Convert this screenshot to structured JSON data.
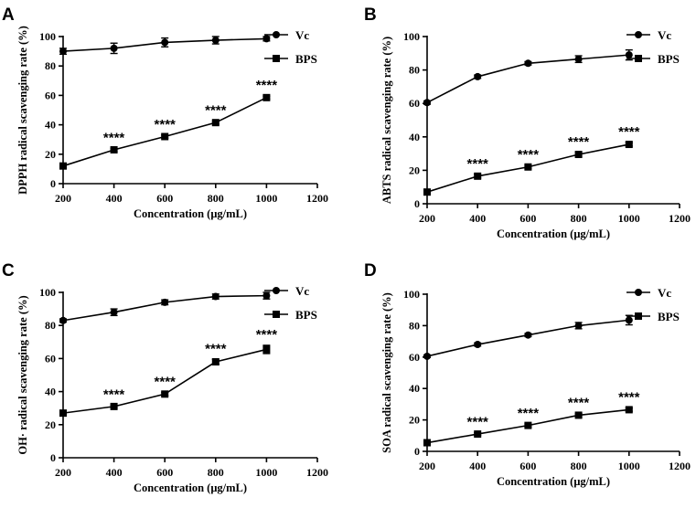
{
  "chart_data": [
    {
      "type": "line",
      "panel": "A",
      "title": "",
      "xlabel": "Concentration (μg/mL)",
      "ylabel": "DPPH radical scavenging rate (%)",
      "xlim": [
        200,
        1200
      ],
      "ylim": [
        0,
        100
      ],
      "xticks": [
        200,
        400,
        600,
        800,
        1000,
        1200
      ],
      "yticks": [
        0,
        20,
        40,
        60,
        80,
        100
      ],
      "x": [
        200,
        400,
        600,
        800,
        1000
      ],
      "legend_position": "top-right",
      "series": [
        {
          "name": "Vc",
          "marker": "circle",
          "values": [
            90,
            92,
            96,
            97.5,
            98.5
          ],
          "errors": [
            2,
            3.5,
            3,
            2.5,
            1.5
          ]
        },
        {
          "name": "BPS",
          "marker": "square",
          "values": [
            12,
            23,
            32,
            41.5,
            58.5
          ],
          "errors": [
            0.8,
            1,
            1,
            1,
            1
          ]
        }
      ],
      "annotations": [
        {
          "text": "****",
          "x": 400,
          "y": 23
        },
        {
          "text": "****",
          "x": 600,
          "y": 32
        },
        {
          "text": "****",
          "x": 800,
          "y": 41.5
        },
        {
          "text": "****",
          "x": 1000,
          "y": 58.5
        }
      ]
    },
    {
      "type": "line",
      "panel": "B",
      "title": "",
      "xlabel": "Concentration (μg/mL)",
      "ylabel": "ABTS radical scavenging rate (%)",
      "xlim": [
        200,
        1200
      ],
      "ylim": [
        0,
        100
      ],
      "xticks": [
        200,
        400,
        600,
        800,
        1000,
        1200
      ],
      "yticks": [
        0,
        20,
        40,
        60,
        80,
        100
      ],
      "x": [
        200,
        400,
        600,
        800,
        1000
      ],
      "legend_position": "top-right",
      "series": [
        {
          "name": "Vc",
          "marker": "circle",
          "values": [
            60.5,
            76,
            84,
            86.5,
            89
          ],
          "errors": [
            1,
            1,
            1,
            2,
            3
          ]
        },
        {
          "name": "BPS",
          "marker": "square",
          "values": [
            7,
            16.5,
            22,
            29.5,
            35.5
          ],
          "errors": [
            0.5,
            1,
            1,
            1,
            1
          ]
        }
      ],
      "annotations": [
        {
          "text": "****",
          "x": 400,
          "y": 16.5
        },
        {
          "text": "****",
          "x": 600,
          "y": 22
        },
        {
          "text": "****",
          "x": 800,
          "y": 29.5
        },
        {
          "text": "****",
          "x": 1000,
          "y": 35.5
        }
      ]
    },
    {
      "type": "line",
      "panel": "C",
      "title": "",
      "xlabel": "Concentration (μg/mL)",
      "ylabel": "OH· radical scavenging rate (%)",
      "xlim": [
        200,
        1200
      ],
      "ylim": [
        0,
        100
      ],
      "xticks": [
        200,
        400,
        600,
        800,
        1000,
        1200
      ],
      "yticks": [
        0,
        20,
        40,
        60,
        80,
        100
      ],
      "x": [
        200,
        400,
        600,
        800,
        1000
      ],
      "legend_position": "top-right",
      "series": [
        {
          "name": "Vc",
          "marker": "circle",
          "values": [
            83,
            88,
            94,
            97.5,
            98
          ],
          "errors": [
            1,
            2,
            1.5,
            1.5,
            2
          ]
        },
        {
          "name": "BPS",
          "marker": "square",
          "values": [
            27,
            31,
            38.5,
            58,
            65.5
          ],
          "errors": [
            0.5,
            0.8,
            1,
            1.5,
            2.5
          ]
        }
      ],
      "annotations": [
        {
          "text": "****",
          "x": 400,
          "y": 31
        },
        {
          "text": "****",
          "x": 600,
          "y": 38.5
        },
        {
          "text": "****",
          "x": 800,
          "y": 58
        },
        {
          "text": "****",
          "x": 1000,
          "y": 65.5
        }
      ]
    },
    {
      "type": "line",
      "panel": "D",
      "title": "",
      "xlabel": "Concentration (μg/mL)",
      "ylabel": "SOA radical scavenging rate (%)",
      "xlim": [
        200,
        1200
      ],
      "ylim": [
        0,
        100
      ],
      "xticks": [
        200,
        400,
        600,
        800,
        1000,
        1200
      ],
      "yticks": [
        0,
        20,
        40,
        60,
        80,
        100
      ],
      "x": [
        200,
        400,
        600,
        800,
        1000
      ],
      "legend_position": "top-right",
      "series": [
        {
          "name": "Vc",
          "marker": "circle",
          "values": [
            60.5,
            68,
            74,
            80,
            83.5
          ],
          "errors": [
            0.8,
            1,
            1,
            2,
            3
          ]
        },
        {
          "name": "BPS",
          "marker": "square",
          "values": [
            5.5,
            11,
            16.5,
            23,
            26.5
          ],
          "errors": [
            0.5,
            0.8,
            1,
            1,
            1
          ]
        }
      ],
      "annotations": [
        {
          "text": "****",
          "x": 400,
          "y": 11
        },
        {
          "text": "****",
          "x": 600,
          "y": 16.5
        },
        {
          "text": "****",
          "x": 800,
          "y": 23
        },
        {
          "text": "****",
          "x": 1000,
          "y": 26.5
        }
      ]
    }
  ]
}
